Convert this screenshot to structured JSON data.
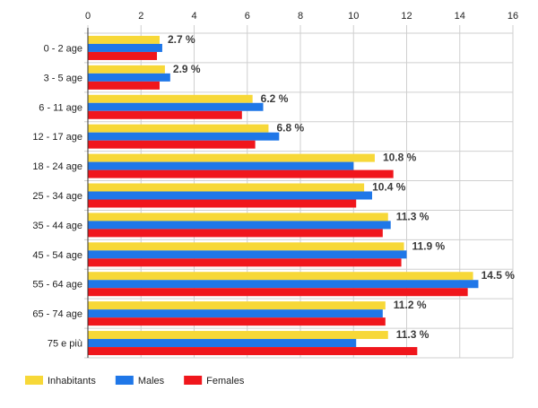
{
  "chart_data": {
    "type": "bar",
    "orientation": "horizontal",
    "categories": [
      "0 - 2 age",
      "3 - 5 age",
      "6 - 11 age",
      "12 - 17 age",
      "18 - 24 age",
      "25 - 34 age",
      "35 - 44 age",
      "45 - 54 age",
      "55 - 64 age",
      "65 - 74 age",
      "75 e più"
    ],
    "series": [
      {
        "name": "Inhabitants",
        "color": "#f7d838",
        "values": [
          2.7,
          2.9,
          6.2,
          6.8,
          10.8,
          10.4,
          11.3,
          11.9,
          14.5,
          11.2,
          11.3
        ]
      },
      {
        "name": "Males",
        "color": "#1f77e8",
        "values": [
          2.8,
          3.1,
          6.6,
          7.2,
          10.0,
          10.7,
          11.4,
          12.0,
          14.7,
          11.1,
          10.1
        ]
      },
      {
        "name": "Females",
        "color": "#f0161c",
        "values": [
          2.6,
          2.7,
          5.8,
          6.3,
          11.5,
          10.1,
          11.1,
          11.8,
          14.3,
          11.2,
          12.4
        ]
      }
    ],
    "data_labels": [
      "2.7 %",
      "2.9 %",
      "6.2 %",
      "6.8 %",
      "10.8 %",
      "10.4 %",
      "11.3 %",
      "11.9 %",
      "14.5 %",
      "11.2 %",
      "11.3 %"
    ],
    "xlim": [
      0,
      16
    ],
    "x_ticks": [
      0,
      2,
      4,
      6,
      8,
      10,
      12,
      14,
      16
    ],
    "x_axis_position": "top",
    "grid": true,
    "legend_position": "bottom-left",
    "title": "",
    "xlabel": "",
    "ylabel": ""
  }
}
